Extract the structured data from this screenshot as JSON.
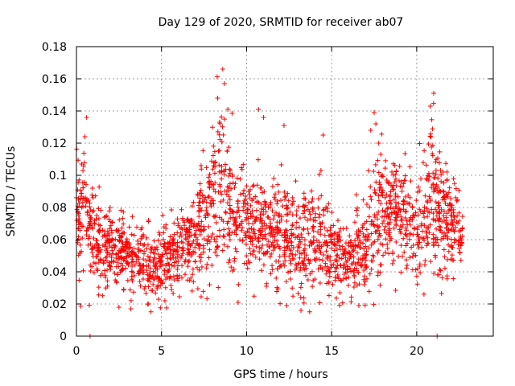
{
  "chart_data": {
    "type": "scatter",
    "title": "Day 129 of 2020, SRMTID for receiver ab07",
    "xlabel": "GPS time / hours",
    "ylabel": "SRMTID / TECUs",
    "xlim": [
      0,
      24.5
    ],
    "ylim": [
      0,
      0.18
    ],
    "grid": true,
    "marker": "plus",
    "color": "#ff0000",
    "x_ticks": [
      0,
      5,
      10,
      15,
      20
    ],
    "x_tick_labels": [
      "0",
      "5",
      "10",
      "15",
      "20"
    ],
    "y_ticks": [
      0,
      0.02,
      0.04,
      0.06,
      0.08,
      0.1,
      0.12,
      0.14,
      0.16,
      0.18
    ],
    "y_tick_labels": [
      "0",
      "0.02",
      "0.04",
      "0.06",
      "0.08",
      "0.1",
      "0.12",
      "0.14",
      "0.16",
      "0.18"
    ],
    "envelope": {
      "description": "approximate median trend of the point cloud (hours, TECU)",
      "hours": [
        0,
        0.5,
        1,
        2,
        3,
        4,
        5,
        6,
        7,
        7.5,
        8,
        8.5,
        9,
        10,
        11,
        12,
        13,
        14,
        14.5,
        15,
        16,
        17,
        17.5,
        18,
        19,
        20,
        20.5,
        21,
        22,
        22.7
      ],
      "median": [
        0.075,
        0.08,
        0.06,
        0.055,
        0.05,
        0.045,
        0.045,
        0.05,
        0.06,
        0.07,
        0.09,
        0.095,
        0.08,
        0.065,
        0.07,
        0.065,
        0.055,
        0.06,
        0.065,
        0.05,
        0.045,
        0.055,
        0.07,
        0.08,
        0.075,
        0.065,
        0.075,
        0.08,
        0.07,
        0.06
      ],
      "spread": [
        0.02,
        0.025,
        0.02,
        0.015,
        0.015,
        0.015,
        0.015,
        0.015,
        0.02,
        0.025,
        0.03,
        0.035,
        0.025,
        0.02,
        0.02,
        0.02,
        0.02,
        0.02,
        0.025,
        0.015,
        0.015,
        0.02,
        0.025,
        0.025,
        0.02,
        0.02,
        0.03,
        0.03,
        0.02,
        0.015
      ]
    },
    "outliers": [
      {
        "x": 0.3,
        "y": 0.107
      },
      {
        "x": 0.6,
        "y": 0.136
      },
      {
        "x": 0.5,
        "y": 0.124
      },
      {
        "x": 0.8,
        "y": 0.0
      },
      {
        "x": 8.6,
        "y": 0.166
      },
      {
        "x": 8.7,
        "y": 0.157
      },
      {
        "x": 8.3,
        "y": 0.148
      },
      {
        "x": 8.9,
        "y": 0.141
      },
      {
        "x": 10.7,
        "y": 0.141
      },
      {
        "x": 11.0,
        "y": 0.136
      },
      {
        "x": 12.2,
        "y": 0.131
      },
      {
        "x": 14.5,
        "y": 0.125
      },
      {
        "x": 17.5,
        "y": 0.139
      },
      {
        "x": 17.6,
        "y": 0.132
      },
      {
        "x": 21.0,
        "y": 0.151
      },
      {
        "x": 20.8,
        "y": 0.143
      },
      {
        "x": 21.2,
        "y": 0.0
      },
      {
        "x": 13.2,
        "y": 0.016
      },
      {
        "x": 16.6,
        "y": 0.019
      },
      {
        "x": 2.5,
        "y": 0.018
      },
      {
        "x": 5.2,
        "y": 0.022
      },
      {
        "x": 9.5,
        "y": 0.021
      },
      {
        "x": 3.2,
        "y": 0.017
      },
      {
        "x": 17.3,
        "y": 0.128
      }
    ],
    "n_points": 2200
  }
}
